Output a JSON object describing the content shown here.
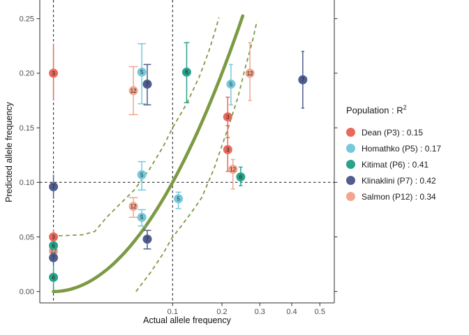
{
  "figure": {
    "background": "#ffffff",
    "x_axis_title": "Actual allele frequency",
    "y_axis_title": "Predicted allele frequency"
  },
  "legend": {
    "title_text": "Population : R",
    "title_superscript": "2",
    "items": [
      {
        "label": "Dean (P3) : 0.15",
        "population": "Dean",
        "code": "P3",
        "r_squared": 0.15,
        "color": "#E8695B"
      },
      {
        "label": "Homathko (P5) : 0.17",
        "population": "Homathko",
        "code": "P5",
        "r_squared": 0.17,
        "color": "#76C8DC"
      },
      {
        "label": "Kitimat (P6) : 0.41",
        "population": "Kitimat",
        "code": "P6",
        "r_squared": 0.41,
        "color": "#29A38A"
      },
      {
        "label": "Klinaklini (P7) : 0.42",
        "population": "Klinaklini",
        "code": "P7",
        "r_squared": 0.42,
        "color": "#4F5D8F"
      },
      {
        "label": "Salmon (P12) : 0.34",
        "population": "Salmon",
        "code": "P12",
        "r_squared": 0.34,
        "color": "#F2A58F"
      }
    ]
  },
  "chart_data": {
    "type": "scatter",
    "title": "",
    "xlabel": "Actual allele frequency",
    "ylabel": "Predicted allele frequency",
    "x_scale": "sqrt",
    "xlim": [
      0,
      0.55
    ],
    "ylim": [
      0,
      0.2625
    ],
    "grid": "off",
    "legend_position": "right",
    "x_ticks": [
      0.1,
      0.2,
      0.3,
      0.4,
      0.5
    ],
    "x_tick_labels": [
      "0.1",
      "0.2",
      "0.3",
      "0.4",
      "0.5"
    ],
    "y_ticks": [
      0,
      0.05,
      0.1,
      0.15,
      0.2,
      0.25
    ],
    "y_tick_labels": [
      "0.00",
      "0.05",
      "0.10",
      "0.15",
      "0.20",
      "0.25"
    ],
    "reference_lines": {
      "vertical_x": [
        0,
        0.1
      ],
      "horizontal_y": [
        0.1
      ],
      "color": "#111111",
      "style": "dashed"
    },
    "identity_line": {
      "description": "y = x identity line (appears curved due to sqrt x-scale)",
      "from": [
        0,
        0
      ],
      "to": [
        0.2525,
        0.2525
      ],
      "color": "#7C9A43",
      "width": 4.6
    },
    "ci_curves": {
      "color": "#7C9A43",
      "style": "dashed",
      "upper": [
        [
          0.0002,
          0.051
        ],
        [
          0.006,
          0.052
        ],
        [
          0.012,
          0.055
        ],
        [
          0.02,
          0.068
        ],
        [
          0.03,
          0.079
        ],
        [
          0.046,
          0.093
        ],
        [
          0.065,
          0.112
        ],
        [
          0.085,
          0.133
        ],
        [
          0.1,
          0.15
        ],
        [
          0.125,
          0.172
        ],
        [
          0.15,
          0.197
        ],
        [
          0.17,
          0.22
        ],
        [
          0.185,
          0.24
        ],
        [
          0.193,
          0.251
        ]
      ],
      "lower": [
        [
          0.048,
          0.0
        ],
        [
          0.055,
          0.007
        ],
        [
          0.067,
          0.018
        ],
        [
          0.084,
          0.034
        ],
        [
          0.099,
          0.049
        ],
        [
          0.115,
          0.06
        ],
        [
          0.135,
          0.073
        ],
        [
          0.155,
          0.086
        ],
        [
          0.182,
          0.113
        ],
        [
          0.215,
          0.15
        ],
        [
          0.24,
          0.178
        ],
        [
          0.26,
          0.206
        ],
        [
          0.278,
          0.228
        ],
        [
          0.292,
          0.248
        ]
      ]
    },
    "draw_order": [
      0,
      1,
      4,
      2,
      3
    ],
    "series": [
      {
        "name": "Dean (P3)",
        "r_squared": 0.15,
        "point_label": "3",
        "color": "#E8695B",
        "points": [
          {
            "x": 0,
            "y": 0.2,
            "ymin": 0.175,
            "ymax": 0.227
          },
          {
            "x": 0,
            "y": 0.05,
            "ymin": 0.043,
            "ymax": 0.057
          },
          {
            "x": 0.214,
            "y": 0.16,
            "ymin": 0.141,
            "ymax": 0.178
          },
          {
            "x": 0.214,
            "y": 0.13,
            "ymin": 0.11,
            "ymax": 0.152
          }
        ]
      },
      {
        "name": "Homathko (P5)",
        "r_squared": 0.17,
        "point_label": "5",
        "color": "#76C8DC",
        "points": [
          {
            "x": 0.055,
            "y": 0.201,
            "ymin": 0.172,
            "ymax": 0.227
          },
          {
            "x": 0.055,
            "y": 0.107,
            "ymin": 0.093,
            "ymax": 0.119
          },
          {
            "x": 0.055,
            "y": 0.068,
            "ymin": 0.06,
            "ymax": 0.075
          },
          {
            "x": 0.11,
            "y": 0.085,
            "ymin": 0.076,
            "ymax": 0.091
          },
          {
            "x": 0.222,
            "y": 0.19,
            "ymin": 0.171,
            "ymax": 0.208
          }
        ]
      },
      {
        "name": "Kitimat (P6)",
        "r_squared": 0.41,
        "point_label": "6",
        "color": "#29A38A",
        "points": [
          {
            "x": 0,
            "y": 0.042,
            "ymin": 0.034,
            "ymax": 0.051
          },
          {
            "x": 0,
            "y": 0.013,
            "ymin": 0.001,
            "ymax": 0.024
          },
          {
            "x": 0.125,
            "y": 0.201,
            "ymin": 0.173,
            "ymax": 0.228
          },
          {
            "x": 0.247,
            "y": 0.105,
            "ymin": 0.097,
            "ymax": 0.114
          }
        ]
      },
      {
        "name": "Klinaklini (P7)",
        "r_squared": 0.42,
        "point_label": "7",
        "color": "#4F5D8F",
        "points": [
          {
            "x": 0,
            "y": 0.096,
            "ymin": 0.085,
            "ymax": 0.107
          },
          {
            "x": 0,
            "y": 0.031,
            "ymin": 0.025,
            "ymax": 0.038
          },
          {
            "x": 0.062,
            "y": 0.19,
            "ymin": 0.171,
            "ymax": 0.208
          },
          {
            "x": 0.062,
            "y": 0.048,
            "ymin": 0.039,
            "ymax": 0.056
          },
          {
            "x": 0.438,
            "y": 0.194,
            "ymin": 0.168,
            "ymax": 0.22
          }
        ]
      },
      {
        "name": "Salmon (P12)",
        "r_squared": 0.34,
        "point_label": "12",
        "color": "#F2A58F",
        "points": [
          {
            "x": 0,
            "y": 0.037,
            "ymin": 0.03,
            "ymax": 0.044
          },
          {
            "x": 0.045,
            "y": 0.184,
            "ymin": 0.162,
            "ymax": 0.206
          },
          {
            "x": 0.045,
            "y": 0.078,
            "ymin": 0.068,
            "ymax": 0.086
          },
          {
            "x": 0.227,
            "y": 0.112,
            "ymin": 0.094,
            "ymax": 0.121
          },
          {
            "x": 0.272,
            "y": 0.2,
            "ymin": 0.175,
            "ymax": 0.228
          }
        ]
      }
    ]
  }
}
